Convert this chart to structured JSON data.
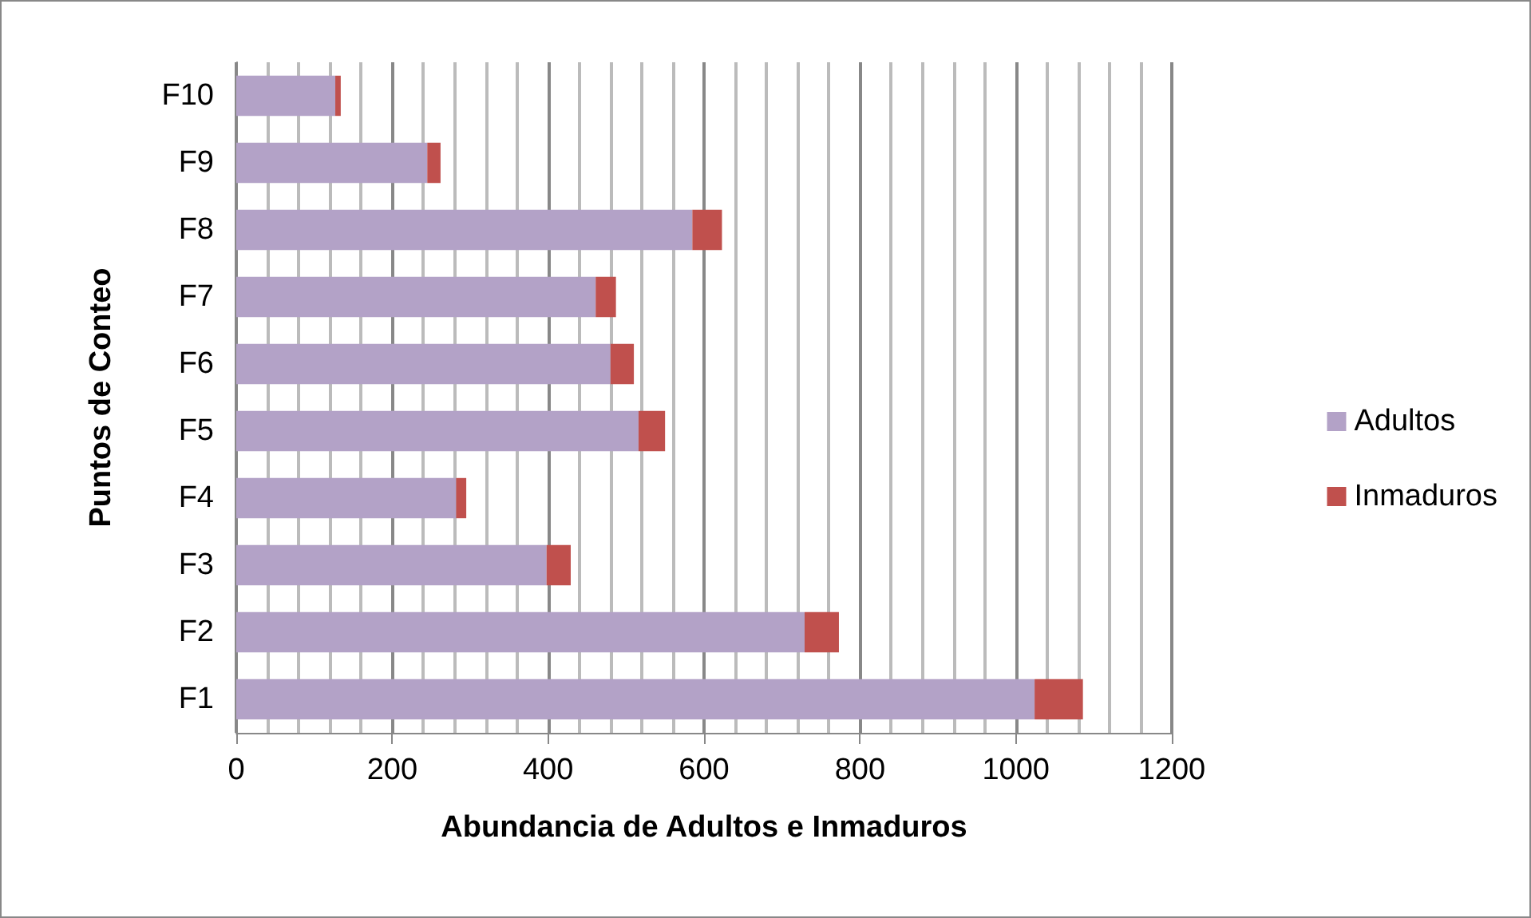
{
  "chart_data": {
    "type": "bar",
    "orientation": "horizontal",
    "stacked": true,
    "xlabel": "Abundancia de Adultos e Inmaduros",
    "ylabel": "Puntos de Conteo",
    "categories": [
      "F10",
      "F9",
      "F8",
      "F7",
      "F6",
      "F5",
      "F4",
      "F3",
      "F2",
      "F1"
    ],
    "series": [
      {
        "name": "Adultos",
        "color": "#b3a2c7",
        "values": [
          127,
          245,
          585,
          461,
          480,
          516,
          282,
          398,
          729,
          1024
        ]
      },
      {
        "name": "Inmaduros",
        "color": "#c0504d",
        "values": [
          7,
          17,
          38,
          26,
          30,
          34,
          13,
          31,
          44,
          62
        ]
      }
    ],
    "xlim": [
      0,
      1200
    ],
    "xticks": [
      0,
      {
        "value": 40,
        "label": null
      },
      {
        "value": 80,
        "label": null
      },
      {
        "value": 120,
        "label": null
      },
      {
        "value": 160,
        "label": null
      },
      200,
      {
        "value": 240,
        "label": null
      },
      {
        "value": 280,
        "label": null
      },
      {
        "value": 320,
        "label": null
      },
      {
        "value": 360,
        "label": null
      },
      400,
      {
        "value": 440,
        "label": null
      },
      {
        "value": 480,
        "label": null
      },
      {
        "value": 520,
        "label": null
      },
      {
        "value": 560,
        "label": null
      },
      600,
      {
        "value": 640,
        "label": null
      },
      {
        "value": 680,
        "label": null
      },
      {
        "value": 720,
        "label": null
      },
      {
        "value": 760,
        "label": null
      },
      800,
      {
        "value": 840,
        "label": null
      },
      {
        "value": 880,
        "label": null
      },
      {
        "value": 920,
        "label": null
      },
      {
        "value": 960,
        "label": null
      },
      1000,
      {
        "value": 1040,
        "label": null
      },
      {
        "value": 1080,
        "label": null
      },
      {
        "value": 1120,
        "label": null
      },
      {
        "value": 1160,
        "label": null
      },
      1200
    ],
    "grid": "x",
    "legend": "right"
  }
}
